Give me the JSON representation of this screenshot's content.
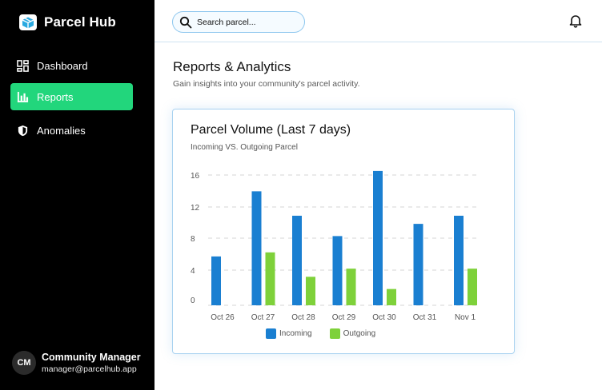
{
  "brand": {
    "name": "Parcel Hub"
  },
  "sidebar": {
    "items": [
      {
        "label": "Dashboard",
        "icon": "dashboard-grid-icon",
        "active": false
      },
      {
        "label": "Reports",
        "icon": "bar-chart-icon",
        "active": true
      },
      {
        "label": "Anomalies",
        "icon": "shield-icon",
        "active": false
      }
    ],
    "active_color": "#22d67c"
  },
  "profile": {
    "initials": "CM",
    "name": "Community Manager",
    "email": "manager@parcelhub.app"
  },
  "search": {
    "placeholder": "Search parcel..."
  },
  "page": {
    "title": "Reports & Analytics",
    "subtitle": "Gain insights into your community's parcel activity."
  },
  "card": {
    "title": "Parcel Volume (Last 7 days)",
    "subtitle": "Incoming VS. Outgoing Parcel"
  },
  "chart_data": {
    "type": "bar",
    "categories": [
      "Oct 26",
      "Oct 27",
      "Oct 28",
      "Oct 29",
      "Oct 30",
      "Oct 31",
      "Nov 1"
    ],
    "series": [
      {
        "name": "Incoming",
        "color": "#1a7fd1",
        "values": [
          6,
          14,
          11,
          8.5,
          16.5,
          10,
          11
        ]
      },
      {
        "name": "Outgoing",
        "color": "#7ed13a",
        "values": [
          0,
          6.5,
          3.5,
          4.5,
          2,
          0,
          4.5
        ]
      }
    ],
    "yticks": [
      "16",
      "12",
      "8",
      "4",
      "0"
    ],
    "ylim": [
      0,
      16
    ],
    "grid": true,
    "legend": "bottom"
  }
}
